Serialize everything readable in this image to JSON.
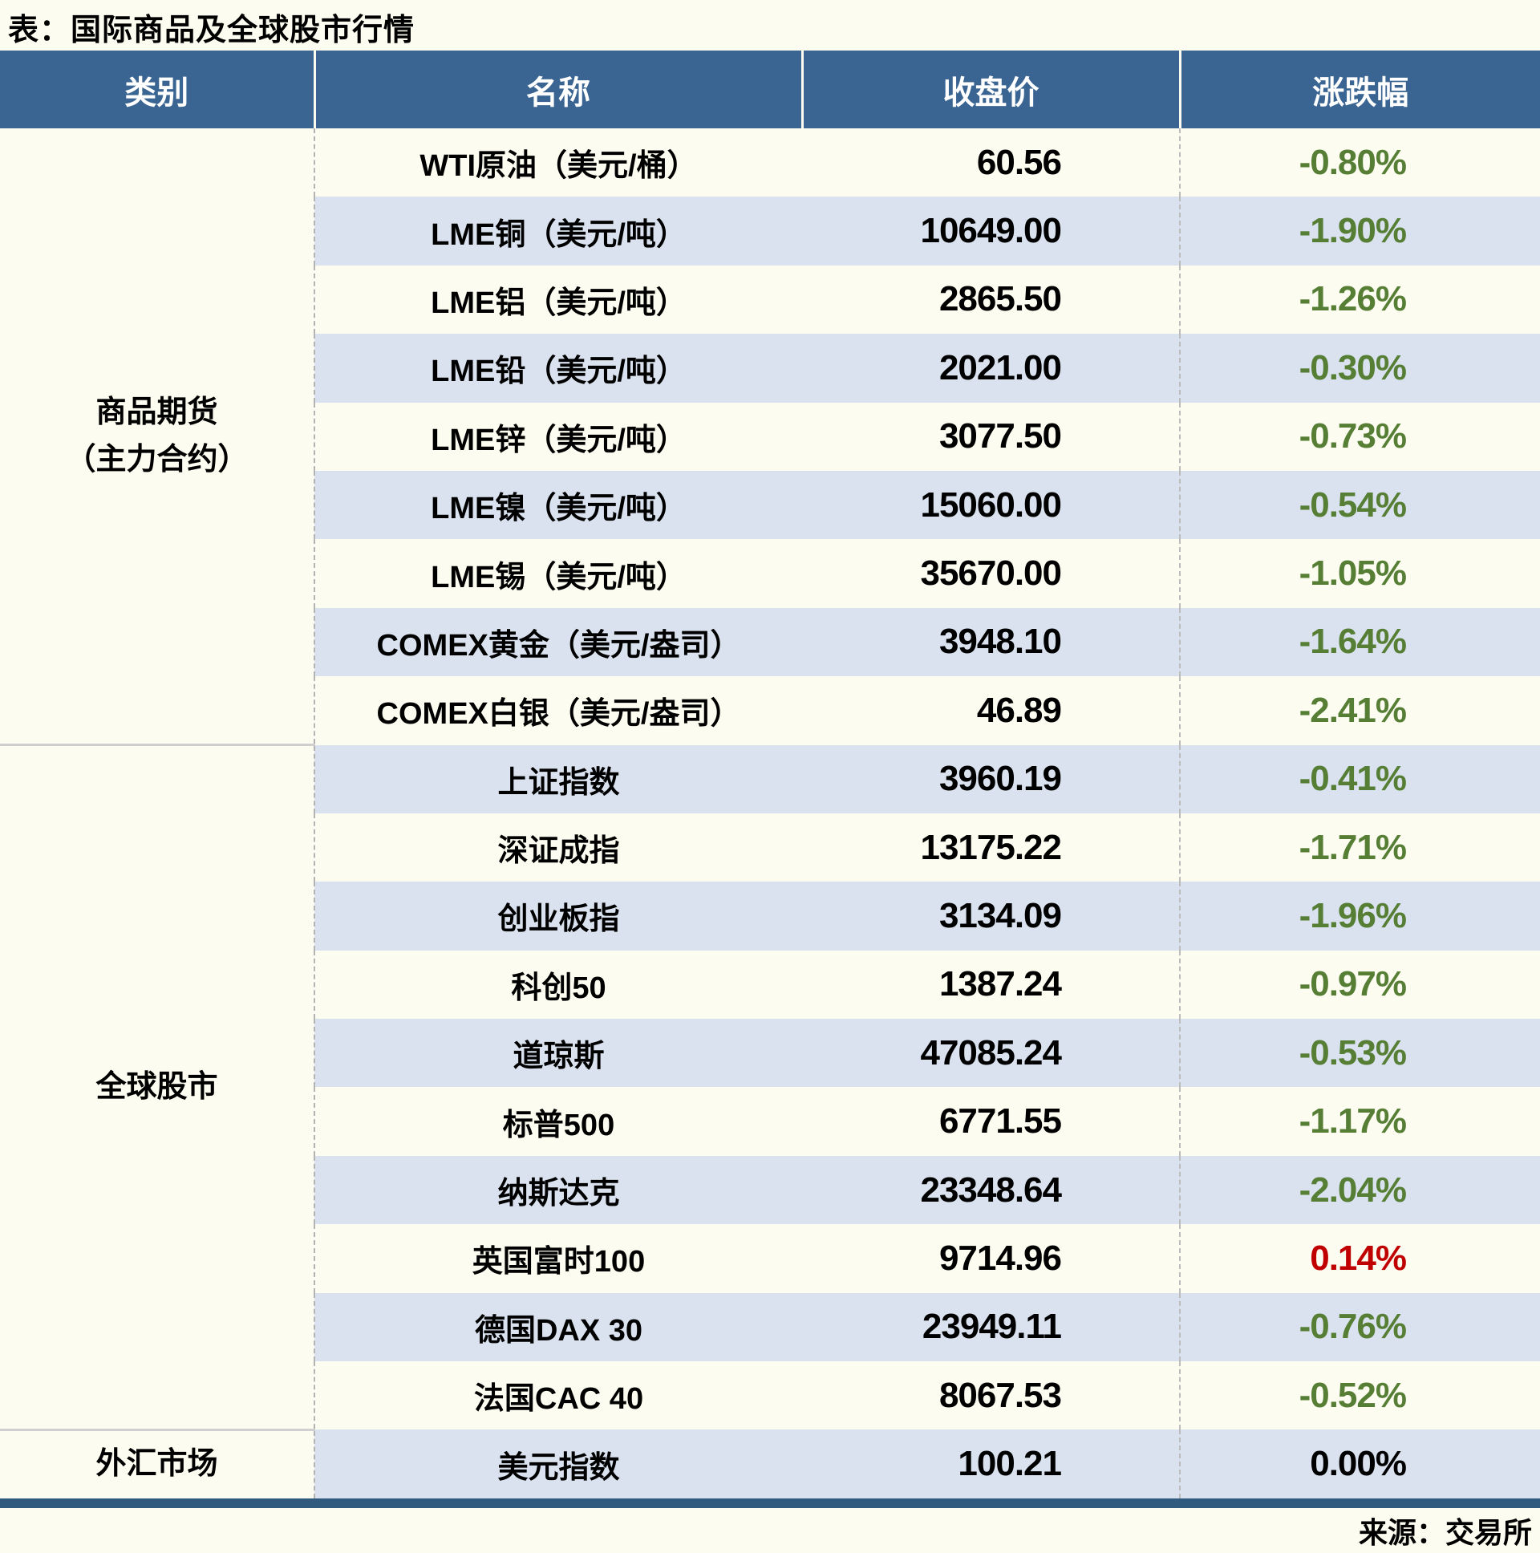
{
  "title": "表：国际商品及全球股市行情",
  "source": "来源：交易所",
  "colors": {
    "header_bg": "#3A6593",
    "stripe_bg": "#D9E2EE",
    "page_bg": "#FCFCF0",
    "footer_bar": "#315A7F",
    "change_down": "#567E35",
    "change_up": "#C00000",
    "change_flat": "#000000"
  },
  "chart_data": {
    "type": "table",
    "columns": [
      "类别",
      "名称",
      "收盘价",
      "涨跌幅"
    ],
    "sections": [
      {
        "category": "商品期货\n（主力合约）",
        "rows": [
          {
            "name": "WTI原油（美元/桶）",
            "close": "60.56",
            "change": "-0.80%",
            "dir": "down"
          },
          {
            "name": "LME铜（美元/吨）",
            "close": "10649.00",
            "change": "-1.90%",
            "dir": "down"
          },
          {
            "name": "LME铝（美元/吨）",
            "close": "2865.50",
            "change": "-1.26%",
            "dir": "down"
          },
          {
            "name": "LME铅（美元/吨）",
            "close": "2021.00",
            "change": "-0.30%",
            "dir": "down"
          },
          {
            "name": "LME锌（美元/吨）",
            "close": "3077.50",
            "change": "-0.73%",
            "dir": "down"
          },
          {
            "name": "LME镍（美元/吨）",
            "close": "15060.00",
            "change": "-0.54%",
            "dir": "down"
          },
          {
            "name": "LME锡（美元/吨）",
            "close": "35670.00",
            "change": "-1.05%",
            "dir": "down"
          },
          {
            "name": "COMEX黄金（美元/盎司）",
            "close": "3948.10",
            "change": "-1.64%",
            "dir": "down"
          },
          {
            "name": "COMEX白银（美元/盎司）",
            "close": "46.89",
            "change": "-2.41%",
            "dir": "down"
          }
        ]
      },
      {
        "category": "全球股市",
        "rows": [
          {
            "name": "上证指数",
            "close": "3960.19",
            "change": "-0.41%",
            "dir": "down"
          },
          {
            "name": "深证成指",
            "close": "13175.22",
            "change": "-1.71%",
            "dir": "down"
          },
          {
            "name": "创业板指",
            "close": "3134.09",
            "change": "-1.96%",
            "dir": "down"
          },
          {
            "name": "科创50",
            "close": "1387.24",
            "change": "-0.97%",
            "dir": "down"
          },
          {
            "name": "道琼斯",
            "close": "47085.24",
            "change": "-0.53%",
            "dir": "down"
          },
          {
            "name": "标普500",
            "close": "6771.55",
            "change": "-1.17%",
            "dir": "down"
          },
          {
            "name": "纳斯达克",
            "close": "23348.64",
            "change": "-2.04%",
            "dir": "down"
          },
          {
            "name": "英国富时100",
            "close": "9714.96",
            "change": "0.14%",
            "dir": "up"
          },
          {
            "name": "德国DAX 30",
            "close": "23949.11",
            "change": "-0.76%",
            "dir": "down"
          },
          {
            "name": "法国CAC 40",
            "close": "8067.53",
            "change": "-0.52%",
            "dir": "down"
          }
        ]
      },
      {
        "category": "外汇市场",
        "rows": [
          {
            "name": "美元指数",
            "close": "100.21",
            "change": "0.00%",
            "dir": "flat"
          }
        ]
      }
    ]
  }
}
